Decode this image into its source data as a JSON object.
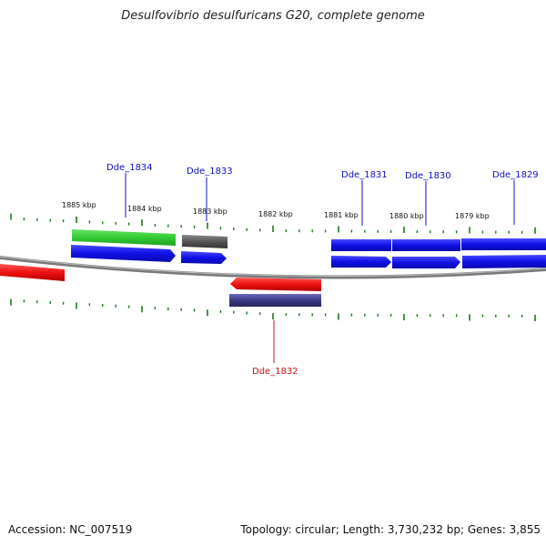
{
  "title": "Desulfovibrio desulfuricans G20, complete genome",
  "footer": {
    "accession_text": "Accession: NC_007519",
    "summary_text": "Topology: circular; Length: 3,730,232 bp; Genes: 3,855"
  },
  "scale_labels": [
    "1885 kbp",
    "1884 kbp",
    "1883 kbp",
    "1882 kbp",
    "1881 kbp",
    "1880 kbp",
    "1879 kbp"
  ],
  "gene_labels": {
    "top": [
      "Dde_1834",
      "Dde_1833",
      "Dde_1831",
      "Dde_1830",
      "Dde_1829"
    ],
    "bottom": [
      "Dde_1832"
    ]
  },
  "colors": {
    "cds": "#1010e6",
    "green_feature": "#33cc33",
    "grey_feature": "#555555",
    "red_feature": "#ee1111",
    "purple_feature": "#3a3a88",
    "ticks": "#1a7a1a",
    "backbone": "#888888",
    "label_top": "#1010c0",
    "label_bottom": "#cc1111"
  }
}
